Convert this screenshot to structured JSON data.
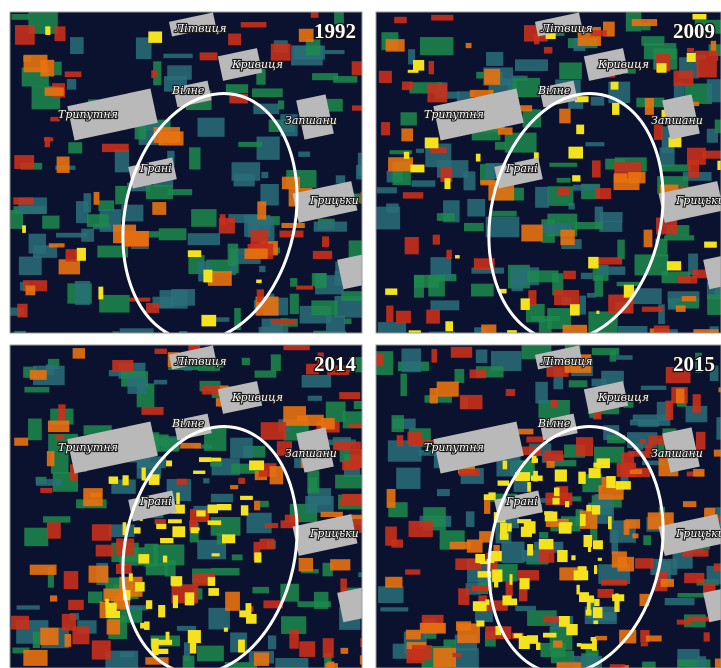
{
  "panels": [
    {
      "year": "1992",
      "places": [
        "Літвиця",
        "Кривиця",
        "Вілне",
        "Трипутня",
        "Запшани",
        "Грані",
        "Грицьки"
      ]
    },
    {
      "year": "2009",
      "places": [
        "Літвиця",
        "Кривиця",
        "Вілне",
        "Трипутня",
        "Запшани",
        "Грані",
        "Грицьки"
      ]
    },
    {
      "year": "2014",
      "places": [
        "Літвиця",
        "Кривиця",
        "Вілне",
        "Трипутня",
        "Запшани",
        "Грані",
        "Грицьки"
      ]
    },
    {
      "year": "2015",
      "places": [
        "Літвиця",
        "Кривиця",
        "Вілне",
        "Трипутня",
        "Запшани",
        "Грані",
        "Грицьки"
      ]
    }
  ]
}
